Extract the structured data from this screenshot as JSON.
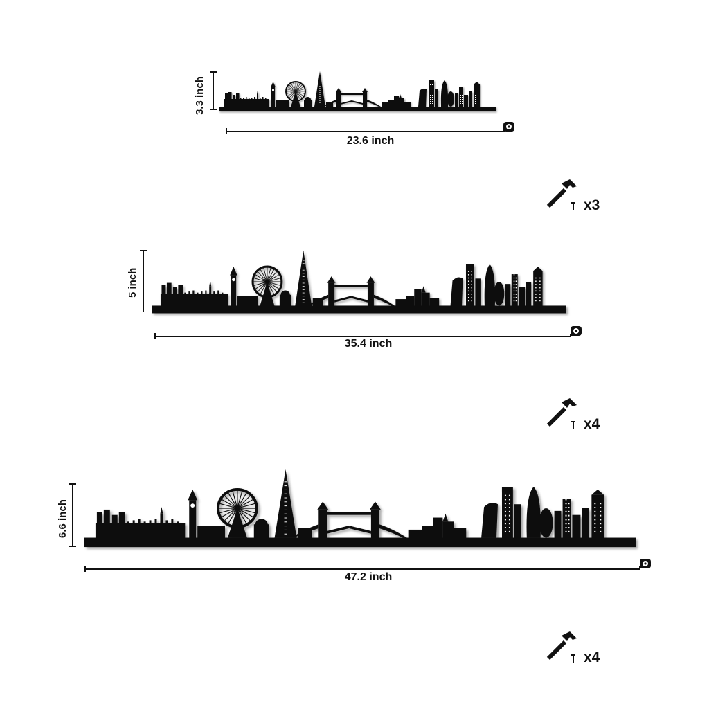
{
  "variants": [
    {
      "height_label": "3.3 inch",
      "width_label": "23.6 inch",
      "nail_count": "x3"
    },
    {
      "height_label": "5 inch",
      "width_label": "35.4 inch",
      "nail_count": "x4"
    },
    {
      "height_label": "6.6 inch",
      "width_label": "47.2 inch",
      "nail_count": "x4"
    }
  ],
  "icons": {
    "tape": "tape-measure-icon",
    "hammer": "hammer-icon",
    "nail": "nail-icon"
  },
  "colors": {
    "ink": "#111111",
    "background": "#ffffff"
  }
}
